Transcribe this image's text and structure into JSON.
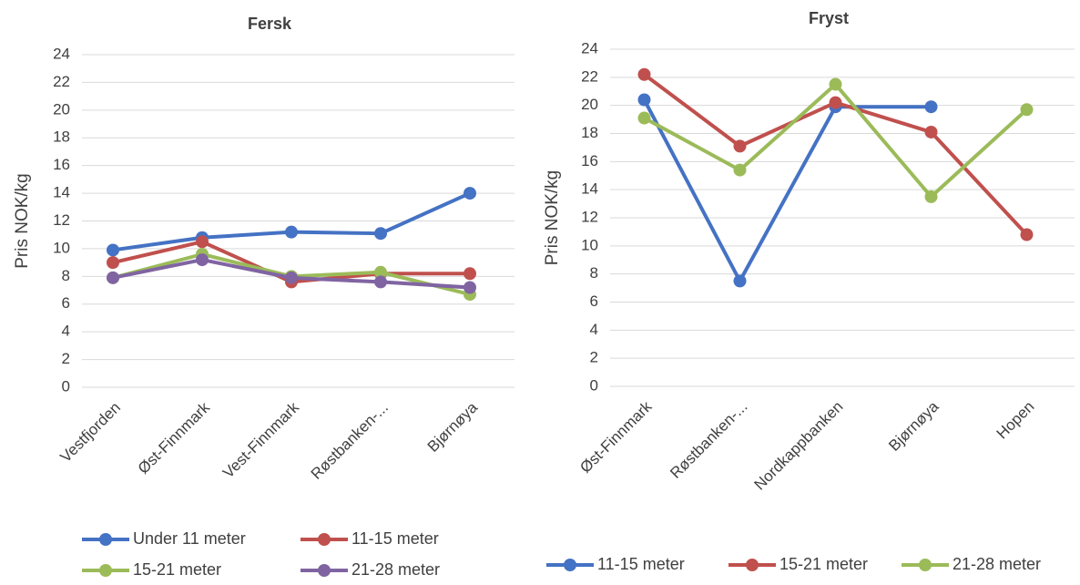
{
  "chart_data": [
    {
      "type": "line",
      "title": "Fersk",
      "y_label": "Pris NOK/kg",
      "categories": [
        "Vestfjorden",
        "Øst-Finnmark",
        "Vest-Finnmark",
        "Røstbanken-...",
        "Bjørnøya"
      ],
      "series": [
        {
          "name": "Under 11 meter",
          "color": "#4472c4",
          "values": [
            9.9,
            10.8,
            11.2,
            11.1,
            14.0
          ]
        },
        {
          "name": "11-15 meter",
          "color": "#c0504d",
          "values": [
            9.0,
            10.5,
            7.6,
            8.2,
            8.2
          ]
        },
        {
          "name": "15-21 meter",
          "color": "#9bbb59",
          "values": [
            7.9,
            9.6,
            8.0,
            8.3,
            6.7
          ]
        },
        {
          "name": "21-28 meter",
          "color": "#8064a2",
          "values": [
            7.9,
            9.2,
            7.9,
            7.6,
            7.2
          ]
        }
      ],
      "ylim": [
        0,
        24
      ],
      "yticks": [
        0,
        2,
        4,
        6,
        8,
        10,
        12,
        14,
        16,
        18,
        20,
        22,
        24
      ],
      "grid": true
    },
    {
      "type": "line",
      "title": "Fryst",
      "y_label": "Pris NOK/kg",
      "categories": [
        "Øst-Finnmark",
        "Røstbanken-...",
        "Nordkappbanken",
        "Bjørnøya",
        "Hopen"
      ],
      "series": [
        {
          "name": "11-15 meter",
          "color": "#4472c4",
          "values": [
            20.4,
            7.5,
            19.9,
            19.9,
            null
          ]
        },
        {
          "name": "15-21 meter",
          "color": "#c0504d",
          "values": [
            22.2,
            17.1,
            20.2,
            18.1,
            10.8
          ]
        },
        {
          "name": "21-28 meter",
          "color": "#9bbb59",
          "values": [
            19.1,
            15.4,
            21.5,
            13.5,
            19.7
          ]
        }
      ],
      "ylim": [
        0,
        24
      ],
      "yticks": [
        0,
        2,
        4,
        6,
        8,
        10,
        12,
        14,
        16,
        18,
        20,
        22,
        24
      ],
      "grid": true
    }
  ]
}
